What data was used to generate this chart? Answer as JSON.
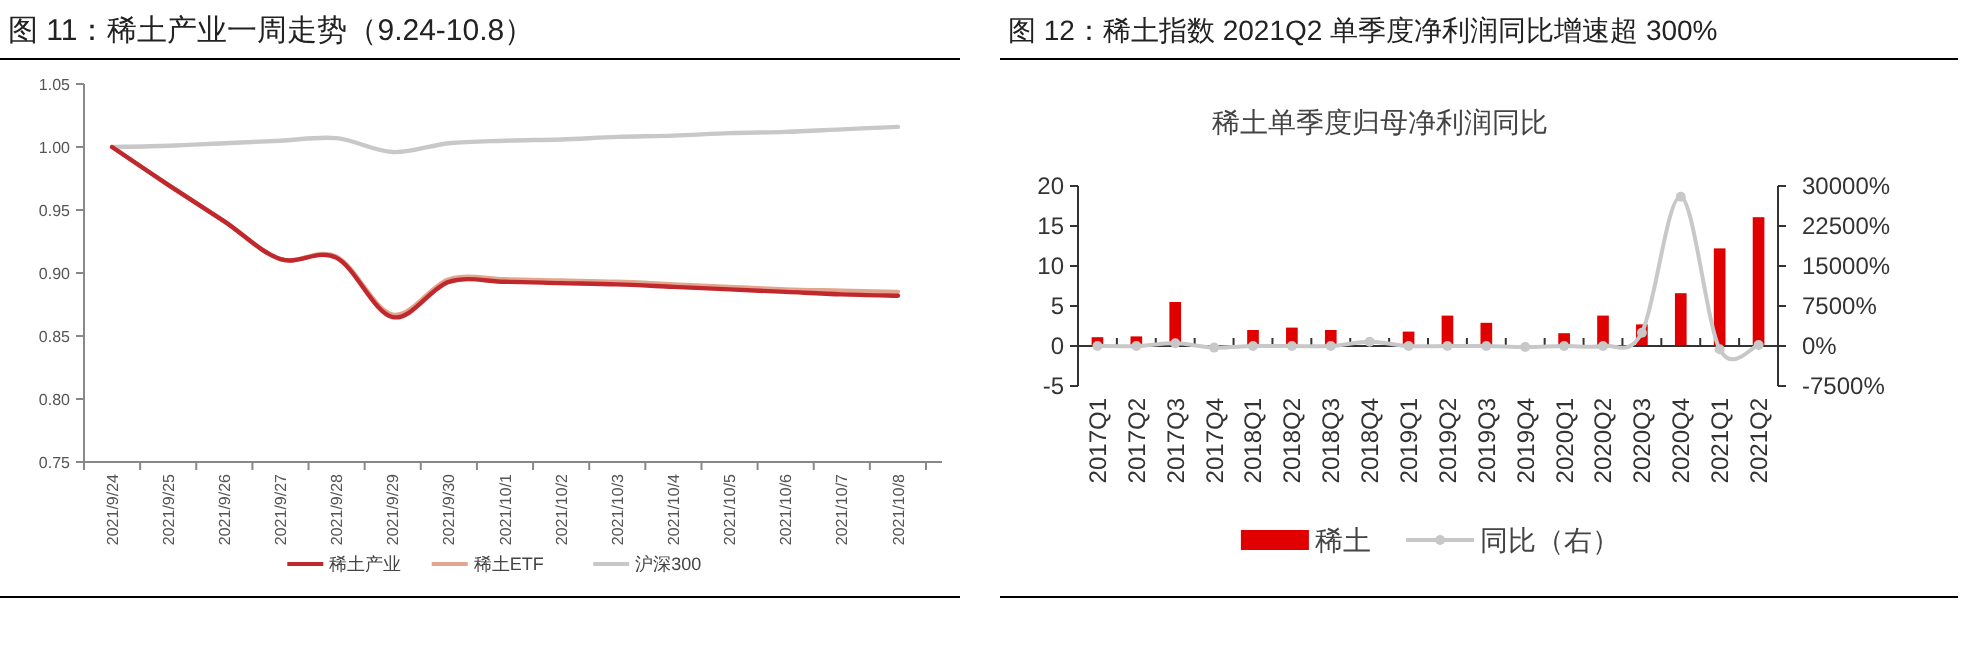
{
  "chart_data": [
    {
      "type": "line",
      "title": "图 11：稀土产业一周走势（9.24-10.8）",
      "categories": [
        "2021/9/24",
        "2021/9/25",
        "2021/9/26",
        "2021/9/27",
        "2021/9/28",
        "2021/9/29",
        "2021/9/30",
        "2021/10/1",
        "2021/10/2",
        "2021/10/3",
        "2021/10/4",
        "2021/10/5",
        "2021/10/6",
        "2021/10/7",
        "2021/10/8"
      ],
      "series": [
        {
          "name": "稀土产业",
          "color": "#c0282d",
          "values": [
            1.0,
            0.97,
            0.941,
            0.911,
            0.912,
            0.865,
            0.893,
            0.893,
            0.892,
            0.891,
            0.889,
            0.887,
            0.885,
            0.883,
            0.882
          ]
        },
        {
          "name": "稀土ETF",
          "color": "#e2a58e",
          "values": [
            1.0,
            0.97,
            0.941,
            0.911,
            0.913,
            0.867,
            0.895,
            0.895,
            0.894,
            0.893,
            0.891,
            0.889,
            0.887,
            0.886,
            0.885
          ]
        },
        {
          "name": "沪深300",
          "color": "#c8c8c8",
          "values": [
            1.0,
            1.001,
            1.003,
            1.005,
            1.007,
            0.996,
            1.003,
            1.005,
            1.006,
            1.008,
            1.009,
            1.011,
            1.012,
            1.014,
            1.016
          ]
        }
      ],
      "ylim": [
        0.75,
        1.05
      ],
      "yticks": [
        {
          "value": 0.75,
          "label": "0.75"
        },
        {
          "value": 0.8,
          "label": "0.80"
        },
        {
          "value": 0.85,
          "label": "0.85"
        },
        {
          "value": 0.9,
          "label": "0.90"
        },
        {
          "value": 0.95,
          "label": "0.95"
        },
        {
          "value": 1.0,
          "label": "1.00"
        },
        {
          "value": 1.05,
          "label": "1.05"
        }
      ],
      "legend": "bottom"
    },
    {
      "type": "bar",
      "title": "图 12：稀土指数 2021Q2 单季度净利润同比增速超 300%",
      "subtitle": "稀土单季度归母净利润同比",
      "categories": [
        "2017Q1",
        "2017Q2",
        "2017Q3",
        "2017Q4",
        "2018Q1",
        "2018Q2",
        "2018Q3",
        "2018Q4",
        "2019Q1",
        "2019Q2",
        "2019Q3",
        "2019Q4",
        "2020Q1",
        "2020Q2",
        "2020Q3",
        "2020Q4",
        "2021Q1",
        "2021Q2"
      ],
      "series": [
        {
          "name": "稀土",
          "color": "#e00000",
          "values": [
            1.1,
            1.2,
            5.5,
            0.1,
            2.0,
            2.3,
            2.0,
            null,
            1.8,
            3.8,
            2.9,
            null,
            1.6,
            3.8,
            2.7,
            6.6,
            12.2,
            16.1
          ]
        },
        {
          "name": "同比（右）",
          "type": "line",
          "axis": "y2",
          "marker": "circle",
          "color": "#c8c8c8",
          "values": [
            0,
            0,
            500,
            -300,
            0,
            0,
            0,
            800,
            0,
            0,
            0,
            -200,
            0,
            0,
            2500,
            28000,
            -600,
            200
          ]
        }
      ],
      "ylim": [
        -5,
        20
      ],
      "yticks": [
        -5,
        0,
        5,
        10,
        15,
        20
      ],
      "y2lim": [
        -7500,
        30000
      ],
      "y2ticks": [
        {
          "value": -7500,
          "label": "-7500%"
        },
        {
          "value": 0,
          "label": "0%"
        },
        {
          "value": 7500,
          "label": "7500%"
        },
        {
          "value": 15000,
          "label": "15000%"
        },
        {
          "value": 22500,
          "label": "22500%"
        },
        {
          "value": 30000,
          "label": "30000%"
        }
      ],
      "legend": "bottom"
    }
  ]
}
